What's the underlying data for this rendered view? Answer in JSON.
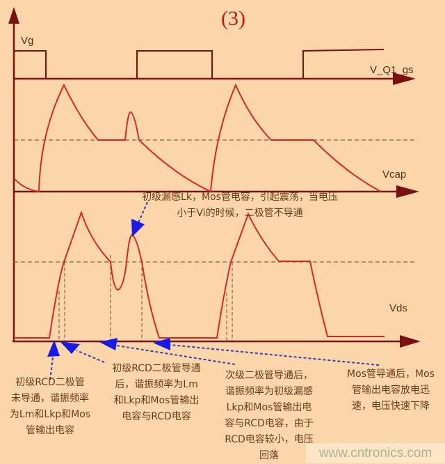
{
  "title": "(3)",
  "colors": {
    "background": "#fbd6ab",
    "axis": "#7a1010",
    "waveform": "#d42a1e",
    "arrow": "#1a1ae6",
    "text": "#6b3a1c"
  },
  "signals": {
    "vg_label": "Vg",
    "vq1gs_label": "V_Q1_gs",
    "vcap_label": "Vcap",
    "vds_label": "Vds"
  },
  "annotations": {
    "top": [
      "初级漏感Lk，Mos管电容，引起震荡，当电压",
      "小于Vi的时候，二极管不导通"
    ],
    "note1": [
      "初级RCD二极管",
      "未导通，谐振频率",
      "为Lm和Lkp和Mos",
      "管输出电容"
    ],
    "note2": [
      "初级RCD二极管导通",
      "后，谐振频率为Lm",
      "和Lkp和Mos管输出",
      "电容与RCD电容"
    ],
    "note3": [
      "次级二极管导通后，",
      "谐振频率为初级漏感",
      "Lkp和Mos管输出电",
      "容与RCD电容，由于",
      "RCD电容较小，电压",
      "回落"
    ],
    "note4": [
      "Mos管导通后，Mos",
      "管输出电容放电迅",
      "速，电压快速下降"
    ]
  },
  "watermark": "www.cntronics.com"
}
